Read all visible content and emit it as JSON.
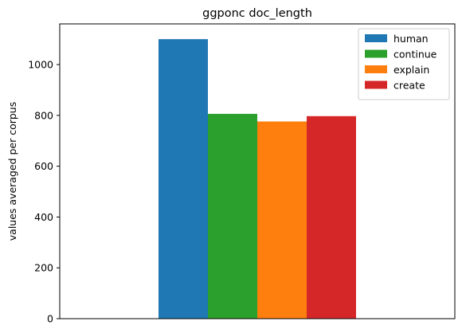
{
  "chart_data": {
    "type": "bar",
    "title": "ggponc doc_length",
    "ylabel": "values averaged per corpus",
    "xlabel": "",
    "ylim": [
      0,
      1160
    ],
    "yticks": [
      0,
      200,
      400,
      600,
      800,
      1000
    ],
    "grid": false,
    "legend_position": "top-right",
    "series": [
      {
        "name": "human",
        "values": [
          1100
        ],
        "color": "#1f77b4"
      },
      {
        "name": "continue",
        "values": [
          806
        ],
        "color": "#2ca02c"
      },
      {
        "name": "explain",
        "values": [
          776
        ],
        "color": "#ff7f0e"
      },
      {
        "name": "create",
        "values": [
          797
        ],
        "color": "#d62728"
      }
    ]
  }
}
